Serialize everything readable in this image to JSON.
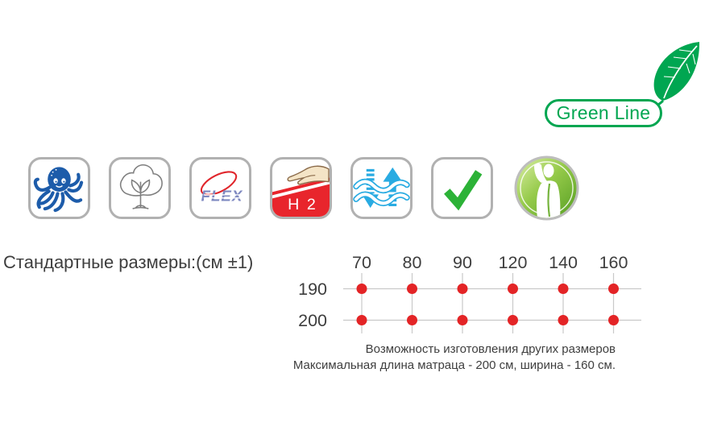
{
  "badge": {
    "label": "Green Line",
    "color": "#00a651"
  },
  "feature_icons": [
    {
      "id": "octopus-icon"
    },
    {
      "id": "cotton-icon"
    },
    {
      "id": "flex-icon",
      "text": "FLEX"
    },
    {
      "id": "firmness-h2-icon",
      "text": "H 2"
    },
    {
      "id": "ventilation-icon"
    },
    {
      "id": "check-icon"
    },
    {
      "id": "orthopedic-person-icon"
    }
  ],
  "sizes": {
    "title": "Стандартные размеры:(см ±1)"
  },
  "chart_data": {
    "type": "scatter",
    "title": "Стандартные размеры:(см ±1)",
    "x_categories": [
      "70",
      "80",
      "90",
      "120",
      "140",
      "160"
    ],
    "y_categories": [
      "190",
      "200"
    ],
    "matrix": [
      [
        1,
        1,
        1,
        1,
        1,
        1
      ],
      [
        1,
        1,
        1,
        1,
        1,
        1
      ]
    ],
    "x_axis_position": "top",
    "y_axis_position": "left",
    "grid": true,
    "dot_color": "#e32426",
    "grid_color": "#c9c9c9",
    "label_color": "#3e3e3e",
    "units": "см"
  },
  "notes": {
    "line1": "Возможность изготовления других размеров",
    "line2": "Максимальная длина матраца - 200 см, ширина - 160 см."
  }
}
